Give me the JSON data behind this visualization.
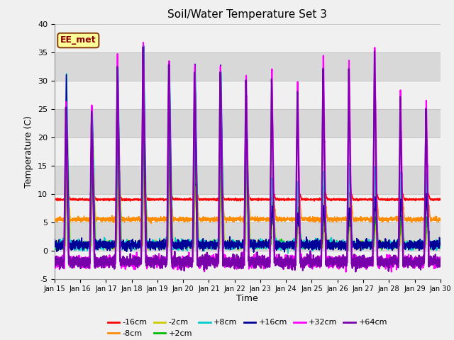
{
  "title": "Soil/Water Temperature Set 3",
  "xlabel": "Time",
  "ylabel": "Temperature (C)",
  "ylim": [
    -5,
    40
  ],
  "annotation": "EE_met",
  "x_tick_labels": [
    "Jan 15",
    "Jan 16",
    "Jan 17",
    "Jan 18",
    "Jan 19",
    "Jan 20",
    "Jan 21",
    "Jan 22",
    "Jan 23",
    "Jan 24",
    "Jan 25",
    "Jan 26",
    "Jan 27",
    "Jan 28",
    "Jan 29",
    "Jan 30"
  ],
  "yticks": [
    -5,
    0,
    5,
    10,
    15,
    20,
    25,
    30,
    35,
    40
  ],
  "series": [
    {
      "label": "-16cm",
      "color": "#FF0000",
      "lw": 1.0
    },
    {
      "label": "-8cm",
      "color": "#FF8C00",
      "lw": 1.0
    },
    {
      "label": "-2cm",
      "color": "#CCCC00",
      "lw": 1.0
    },
    {
      "label": "+2cm",
      "color": "#00BB00",
      "lw": 1.0
    },
    {
      "label": "+8cm",
      "color": "#00CCCC",
      "lw": 1.2
    },
    {
      "label": "+16cm",
      "color": "#000099",
      "lw": 1.2
    },
    {
      "label": "+32cm",
      "color": "#FF00FF",
      "lw": 1.5
    },
    {
      "label": "+64cm",
      "color": "#7700AA",
      "lw": 1.5
    }
  ],
  "fig_bg": "#F0F0F0",
  "plot_bg": "#E0E0E0",
  "band_color_light": "#F0F0F0",
  "band_color_dark": "#D8D8D8",
  "grid_line_color": "#C0C0C0"
}
